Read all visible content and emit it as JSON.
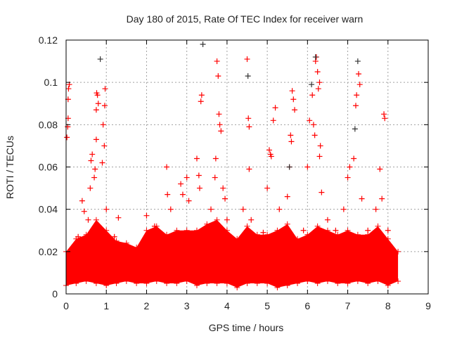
{
  "chart_data": {
    "type": "scatter",
    "title": "Day 180 of 2015, Rate Of TEC Index for receiver warn",
    "xlabel": "GPS time / hours",
    "ylabel": "ROTI / TECUs",
    "xlim": [
      0,
      9
    ],
    "ylim": [
      0,
      0.12
    ],
    "xticks": [
      "0",
      "1",
      "2",
      "3",
      "4",
      "5",
      "6",
      "7",
      "8",
      "9"
    ],
    "yticks": [
      "0",
      "0.02",
      "0.04",
      "0.06",
      "0.08",
      "0.1",
      "0.12"
    ],
    "grid": true,
    "marker": "plus",
    "colors": {
      "primary": "#ff0000",
      "secondary": "#333333",
      "grid": "#a0a0a0"
    },
    "dense_envelope": {
      "x": [
        0,
        0.25,
        0.5,
        0.75,
        1,
        1.25,
        1.5,
        1.75,
        2,
        2.25,
        2.5,
        2.75,
        3,
        3.25,
        3.5,
        3.75,
        4,
        4.25,
        4.5,
        4.75,
        5,
        5.25,
        5.5,
        5.75,
        6,
        6.25,
        6.5,
        6.75,
        7,
        7.25,
        7.5,
        7.75,
        8,
        8.25
      ],
      "low": [
        0.004,
        0.005,
        0.006,
        0.005,
        0.004,
        0.005,
        0.006,
        0.005,
        0.005,
        0.006,
        0.005,
        0.005,
        0.006,
        0.004,
        0.005,
        0.005,
        0.005,
        0.003,
        0.005,
        0.005,
        0.005,
        0.003,
        0.004,
        0.005,
        0.006,
        0.005,
        0.006,
        0.005,
        0.005,
        0.006,
        0.005,
        0.006,
        0.004,
        0.006
      ],
      "high": [
        0.02,
        0.026,
        0.028,
        0.035,
        0.03,
        0.025,
        0.024,
        0.022,
        0.03,
        0.032,
        0.028,
        0.03,
        0.03,
        0.03,
        0.033,
        0.035,
        0.03,
        0.026,
        0.032,
        0.028,
        0.028,
        0.03,
        0.033,
        0.026,
        0.028,
        0.032,
        0.03,
        0.028,
        0.03,
        0.028,
        0.028,
        0.032,
        0.026,
        0.02
      ]
    },
    "series": [
      {
        "name": "red",
        "points": [
          [
            0.02,
            0.074
          ],
          [
            0.04,
            0.079
          ],
          [
            0.05,
            0.092
          ],
          [
            0.06,
            0.097
          ],
          [
            0.08,
            0.099
          ],
          [
            0.05,
            0.083
          ],
          [
            0.3,
            0.027
          ],
          [
            0.4,
            0.044
          ],
          [
            0.45,
            0.039
          ],
          [
            0.55,
            0.035
          ],
          [
            0.6,
            0.05
          ],
          [
            0.62,
            0.063
          ],
          [
            0.65,
            0.066
          ],
          [
            0.7,
            0.055
          ],
          [
            0.72,
            0.059
          ],
          [
            0.75,
            0.087
          ],
          [
            0.75,
            0.073
          ],
          [
            0.76,
            0.095
          ],
          [
            0.78,
            0.094
          ],
          [
            0.8,
            0.09
          ],
          [
            0.9,
            0.062
          ],
          [
            0.92,
            0.08
          ],
          [
            0.95,
            0.07
          ],
          [
            0.96,
            0.089
          ],
          [
            0.97,
            0.097
          ],
          [
            1.0,
            0.04
          ],
          [
            1.2,
            0.027
          ],
          [
            1.3,
            0.036
          ],
          [
            2.0,
            0.037
          ],
          [
            2.2,
            0.032
          ],
          [
            2.5,
            0.06
          ],
          [
            2.52,
            0.047
          ],
          [
            2.6,
            0.04
          ],
          [
            2.85,
            0.052
          ],
          [
            2.9,
            0.047
          ],
          [
            3.0,
            0.055
          ],
          [
            3.05,
            0.044
          ],
          [
            3.25,
            0.064
          ],
          [
            3.3,
            0.056
          ],
          [
            3.32,
            0.05
          ],
          [
            3.35,
            0.091
          ],
          [
            3.37,
            0.094
          ],
          [
            3.6,
            0.04
          ],
          [
            3.7,
            0.055
          ],
          [
            3.72,
            0.064
          ],
          [
            3.75,
            0.11
          ],
          [
            3.78,
            0.103
          ],
          [
            3.8,
            0.085
          ],
          [
            3.82,
            0.08
          ],
          [
            3.85,
            0.077
          ],
          [
            3.9,
            0.05
          ],
          [
            3.95,
            0.045
          ],
          [
            4.0,
            0.035
          ],
          [
            4.5,
            0.111
          ],
          [
            4.53,
            0.083
          ],
          [
            4.55,
            0.079
          ],
          [
            4.55,
            0.059
          ],
          [
            4.4,
            0.04
          ],
          [
            4.6,
            0.035
          ],
          [
            4.9,
            0.029
          ],
          [
            5.0,
            0.05
          ],
          [
            5.05,
            0.068
          ],
          [
            5.08,
            0.066
          ],
          [
            5.1,
            0.065
          ],
          [
            5.15,
            0.082
          ],
          [
            5.2,
            0.088
          ],
          [
            5.3,
            0.04
          ],
          [
            5.5,
            0.046
          ],
          [
            5.55,
            0.06
          ],
          [
            5.58,
            0.075
          ],
          [
            5.6,
            0.072
          ],
          [
            5.62,
            0.096
          ],
          [
            5.65,
            0.092
          ],
          [
            5.68,
            0.087
          ],
          [
            5.9,
            0.03
          ],
          [
            6.0,
            0.06
          ],
          [
            6.05,
            0.082
          ],
          [
            6.12,
            0.094
          ],
          [
            6.15,
            0.08
          ],
          [
            6.18,
            0.075
          ],
          [
            6.2,
            0.11
          ],
          [
            6.22,
            0.112
          ],
          [
            6.25,
            0.105
          ],
          [
            6.27,
            0.097
          ],
          [
            6.3,
            0.1
          ],
          [
            6.3,
            0.065
          ],
          [
            6.32,
            0.07
          ],
          [
            6.35,
            0.048
          ],
          [
            6.5,
            0.035
          ],
          [
            6.7,
            0.03
          ],
          [
            6.9,
            0.04
          ],
          [
            7.0,
            0.055
          ],
          [
            7.05,
            0.06
          ],
          [
            7.15,
            0.064
          ],
          [
            7.2,
            0.089
          ],
          [
            7.22,
            0.094
          ],
          [
            7.27,
            0.104
          ],
          [
            7.3,
            0.099
          ],
          [
            7.35,
            0.045
          ],
          [
            7.5,
            0.03
          ],
          [
            7.7,
            0.04
          ],
          [
            7.8,
            0.059
          ],
          [
            7.85,
            0.045
          ],
          [
            7.9,
            0.085
          ],
          [
            7.92,
            0.083
          ],
          [
            8.0,
            0.03
          ]
        ]
      },
      {
        "name": "black",
        "points": [
          [
            0.85,
            0.111
          ],
          [
            3.4,
            0.118
          ],
          [
            4.52,
            0.103
          ],
          [
            6.1,
            0.099
          ],
          [
            7.18,
            0.078
          ],
          [
            7.25,
            0.11
          ],
          [
            5.55,
            0.06
          ],
          [
            6.2,
            0.112
          ]
        ]
      }
    ]
  }
}
